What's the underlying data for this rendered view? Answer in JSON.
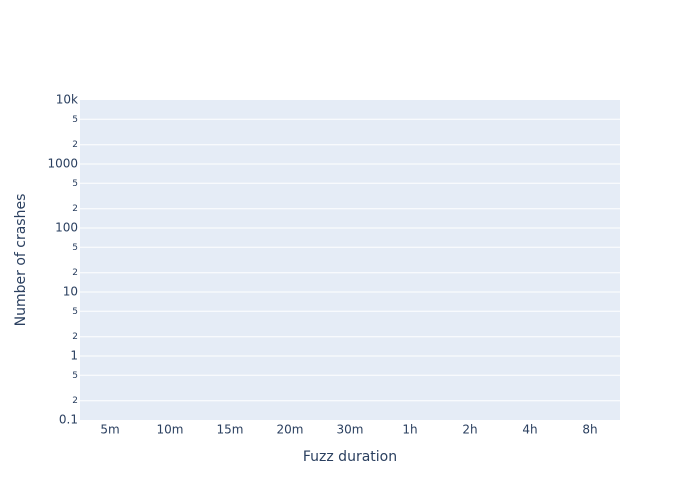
{
  "chart_data": {
    "type": "line",
    "title": "",
    "xlabel": "Fuzz duration",
    "ylabel": "Number of crashes",
    "categories": [
      "5m",
      "10m",
      "15m",
      "20m",
      "30m",
      "1h",
      "2h",
      "4h",
      "8h"
    ],
    "series": [],
    "y_scale": "log",
    "ylim": [
      0.1,
      10000
    ],
    "y_major_ticks": [
      {
        "value": 0.1,
        "label": "0.1"
      },
      {
        "value": 1,
        "label": "1"
      },
      {
        "value": 10,
        "label": "10"
      },
      {
        "value": 100,
        "label": "100"
      },
      {
        "value": 1000,
        "label": "1000"
      },
      {
        "value": 10000,
        "label": "10k"
      }
    ],
    "y_minor_ticks": [
      {
        "value": 0.2,
        "label": "2"
      },
      {
        "value": 0.5,
        "label": "5"
      },
      {
        "value": 2,
        "label": "2"
      },
      {
        "value": 5,
        "label": "5"
      },
      {
        "value": 20,
        "label": "2"
      },
      {
        "value": 50,
        "label": "5"
      },
      {
        "value": 200,
        "label": "2"
      },
      {
        "value": 500,
        "label": "5"
      },
      {
        "value": 2000,
        "label": "2"
      },
      {
        "value": 5000,
        "label": "5"
      }
    ],
    "grid": true,
    "colors": {
      "plot_background": "#e5ecf6",
      "gridline": "#ffffff",
      "text": "#2a3f5f"
    }
  }
}
